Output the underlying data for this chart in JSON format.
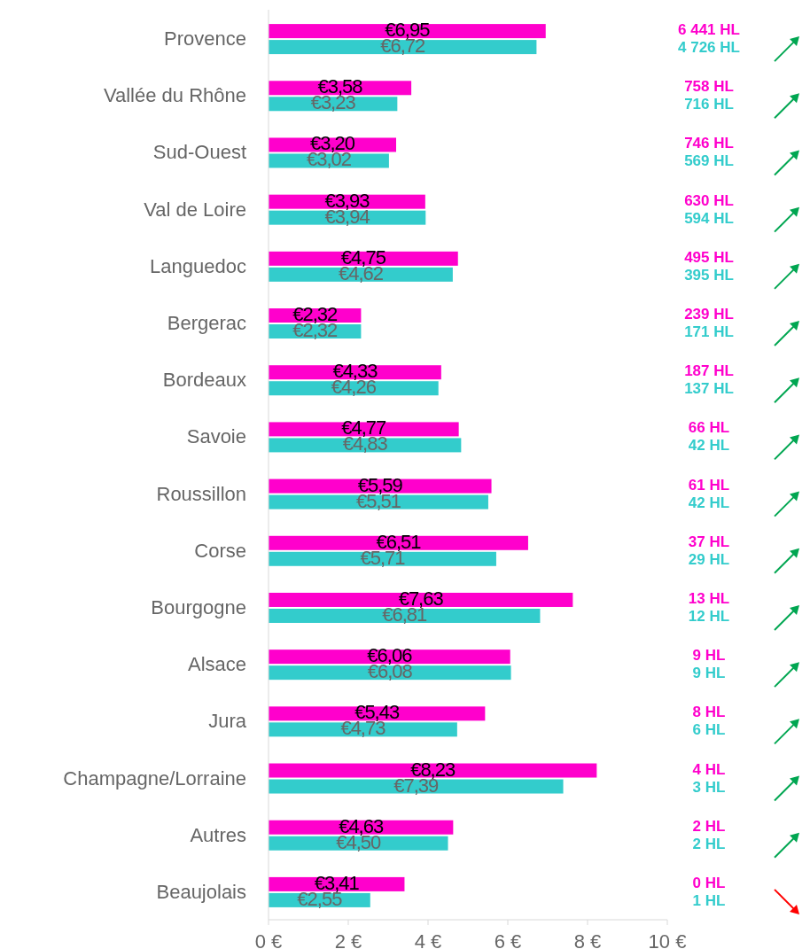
{
  "chart_data": {
    "type": "bar",
    "orientation": "horizontal",
    "categories": [
      "Provence",
      "Vallée du Rhône",
      "Sud-Ouest",
      "Val de Loire",
      "Languedoc",
      "Bergerac",
      "Bordeaux",
      "Savoie",
      "Roussillon",
      "Corse",
      "Bourgogne",
      "Alsace",
      "Jura",
      "Champagne/Lorraine",
      "Autres",
      "Beaujolais"
    ],
    "series": [
      {
        "color": "#ff00cc",
        "values": [
          6.95,
          3.58,
          3.2,
          3.93,
          4.75,
          2.32,
          4.33,
          4.77,
          5.59,
          6.51,
          7.63,
          6.06,
          5.43,
          8.23,
          4.63,
          3.41
        ],
        "value_labels": [
          "€6,95",
          "€3,58",
          "€3,20",
          "€3,93",
          "€4,75",
          "€2,32",
          "€4,33",
          "€4,77",
          "€5,59",
          "€6,51",
          "€7,63",
          "€6,06",
          "€5,43",
          "€8,23",
          "€4,63",
          "€3,41"
        ]
      },
      {
        "color": "#33cccc",
        "values": [
          6.72,
          3.23,
          3.02,
          3.94,
          4.62,
          2.32,
          4.26,
          4.83,
          5.51,
          5.71,
          6.81,
          6.08,
          4.73,
          7.39,
          4.5,
          2.55
        ],
        "value_labels": [
          "€6,72",
          "€3,23",
          "€3,02",
          "€3,94",
          "€4,62",
          "€2,32",
          "€4,26",
          "€4,83",
          "€5,51",
          "€5,71",
          "€6,81",
          "€6,08",
          "€4,73",
          "€7,39",
          "€4,50",
          "€2,55"
        ]
      }
    ],
    "annotations": [
      "6 441 HL",
      "4 726 HL",
      "758 HL",
      "716 HL",
      "746 HL",
      "569 HL",
      "630 HL",
      "594 HL",
      "495 HL",
      "395 HL",
      "239 HL",
      "171 HL",
      "187 HL",
      "137 HL",
      "66 HL",
      "42 HL",
      "61 HL",
      "42 HL",
      "37 HL",
      "29 HL",
      "13 HL",
      "12 HL",
      "9 HL",
      "9 HL",
      "8 HL",
      "6 HL",
      "4 HL",
      "3 HL",
      "2 HL",
      "2 HL",
      "0 HL",
      "1 HL"
    ],
    "xlim": [
      0,
      10
    ],
    "xticks": [
      {
        "value": 0,
        "label": "0 €"
      },
      {
        "value": 2,
        "label": "2 €"
      },
      {
        "value": 4,
        "label": "4 €"
      },
      {
        "value": 6,
        "label": "6 €"
      },
      {
        "value": 8,
        "label": "8 €"
      },
      {
        "value": 10,
        "label": "10 €"
      }
    ],
    "grid": false
  }
}
